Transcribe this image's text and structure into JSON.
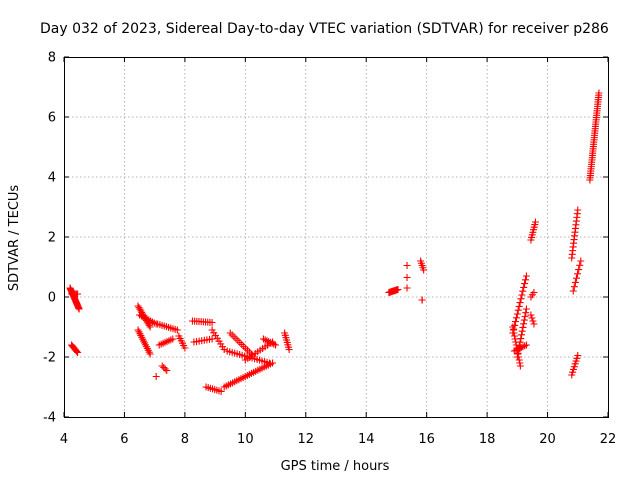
{
  "chart_data": {
    "type": "scatter",
    "title": "Day 032 of 2023, Sidereal Day-to-day VTEC variation (SDTVAR) for receiver p286",
    "xlabel": "GPS time / hours",
    "ylabel": "SDTVAR / TECUs",
    "xlim": [
      4,
      22
    ],
    "ylim": [
      -4,
      8
    ],
    "xticks": [
      "4",
      "6",
      "8",
      "10",
      "12",
      "14",
      "16",
      "18",
      "20",
      "22"
    ],
    "yticks": [
      "-4",
      "-2",
      "0",
      "2",
      "4",
      "6",
      "8"
    ],
    "grid": true,
    "marker": "+",
    "color": "#ff0000",
    "segments": [
      {
        "x": [
          4.2,
          4.5
        ],
        "y": [
          0.3,
          -0.4
        ],
        "n": 24
      },
      {
        "x": [
          4.25,
          4.45
        ],
        "y": [
          0.1,
          0.1
        ],
        "n": 6
      },
      {
        "x": [
          4.25,
          4.45
        ],
        "y": [
          -1.6,
          -1.85
        ],
        "n": 8
      },
      {
        "x": [
          6.45,
          6.85
        ],
        "y": [
          -0.3,
          -1.0
        ],
        "n": 14
      },
      {
        "x": [
          6.45,
          6.85
        ],
        "y": [
          -1.1,
          -1.9
        ],
        "n": 14
      },
      {
        "x": [
          6.5,
          7.05
        ],
        "y": [
          -0.6,
          -0.9
        ],
        "n": 10
      },
      {
        "x": [
          7.05,
          7.05
        ],
        "y": [
          -2.65,
          -2.65
        ],
        "n": 1
      },
      {
        "x": [
          7.25,
          7.4
        ],
        "y": [
          -2.3,
          -2.45
        ],
        "n": 4
      },
      {
        "x": [
          7.15,
          7.6
        ],
        "y": [
          -1.6,
          -1.4
        ],
        "n": 8
      },
      {
        "x": [
          7.1,
          7.75
        ],
        "y": [
          -0.9,
          -1.1
        ],
        "n": 10
      },
      {
        "x": [
          7.8,
          8.0
        ],
        "y": [
          -1.3,
          -1.7
        ],
        "n": 6
      },
      {
        "x": [
          8.25,
          8.9
        ],
        "y": [
          -0.8,
          -0.85
        ],
        "n": 10
      },
      {
        "x": [
          8.3,
          8.9
        ],
        "y": [
          -1.5,
          -1.4
        ],
        "n": 8
      },
      {
        "x": [
          8.9,
          9.3
        ],
        "y": [
          -1.1,
          -1.75
        ],
        "n": 8
      },
      {
        "x": [
          8.7,
          9.2
        ],
        "y": [
          -3.0,
          -3.15
        ],
        "n": 8
      },
      {
        "x": [
          9.3,
          10.9
        ],
        "y": [
          -3.0,
          -2.2
        ],
        "n": 24
      },
      {
        "x": [
          9.4,
          10.8
        ],
        "y": [
          -1.8,
          -2.2
        ],
        "n": 18
      },
      {
        "x": [
          9.5,
          10.2
        ],
        "y": [
          -1.2,
          -1.9
        ],
        "n": 12
      },
      {
        "x": [
          10.0,
          10.9
        ],
        "y": [
          -2.1,
          -1.5
        ],
        "n": 12
      },
      {
        "x": [
          10.6,
          11.0
        ],
        "y": [
          -1.4,
          -1.6
        ],
        "n": 8
      },
      {
        "x": [
          11.3,
          11.45
        ],
        "y": [
          -1.2,
          -1.75
        ],
        "n": 8
      },
      {
        "x": [
          14.75,
          15.05
        ],
        "y": [
          0.15,
          0.25
        ],
        "n": 12
      },
      {
        "x": [
          15.35,
          15.35
        ],
        "y": [
          1.05,
          1.05
        ],
        "n": 1
      },
      {
        "x": [
          15.35,
          15.35
        ],
        "y": [
          0.65,
          0.65
        ],
        "n": 1
      },
      {
        "x": [
          15.35,
          15.35
        ],
        "y": [
          0.3,
          0.3
        ],
        "n": 1
      },
      {
        "x": [
          15.8,
          15.9
        ],
        "y": [
          1.2,
          0.9
        ],
        "n": 5
      },
      {
        "x": [
          15.85,
          15.85
        ],
        "y": [
          -0.1,
          -0.1
        ],
        "n": 2
      },
      {
        "x": [
          18.85,
          19.3
        ],
        "y": [
          -1.2,
          0.7
        ],
        "n": 16
      },
      {
        "x": [
          18.85,
          19.1
        ],
        "y": [
          -1.0,
          -2.3
        ],
        "n": 14
      },
      {
        "x": [
          19.0,
          19.3
        ],
        "y": [
          -2.0,
          -0.4
        ],
        "n": 14
      },
      {
        "x": [
          18.9,
          19.3
        ],
        "y": [
          -1.8,
          -1.6
        ],
        "n": 8
      },
      {
        "x": [
          19.45,
          19.6
        ],
        "y": [
          1.9,
          2.5
        ],
        "n": 8
      },
      {
        "x": [
          19.45,
          19.55
        ],
        "y": [
          0.0,
          0.15
        ],
        "n": 3
      },
      {
        "x": [
          19.45,
          19.55
        ],
        "y": [
          -0.6,
          -0.9
        ],
        "n": 4
      },
      {
        "x": [
          20.8,
          21.0
        ],
        "y": [
          1.3,
          2.9
        ],
        "n": 14
      },
      {
        "x": [
          20.85,
          21.1
        ],
        "y": [
          0.2,
          1.2
        ],
        "n": 8
      },
      {
        "x": [
          20.8,
          21.0
        ],
        "y": [
          -2.6,
          -1.95
        ],
        "n": 8
      },
      {
        "x": [
          21.4,
          21.7
        ],
        "y": [
          3.9,
          6.8
        ],
        "n": 40
      }
    ]
  }
}
